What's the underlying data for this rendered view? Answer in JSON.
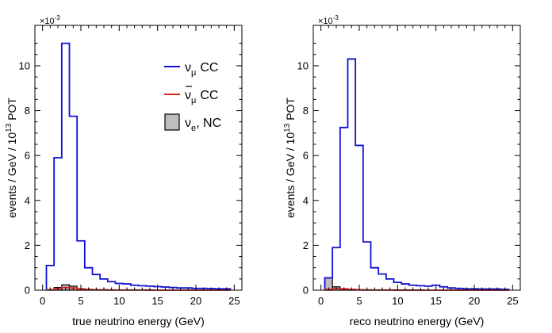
{
  "chart_data": [
    {
      "type": "histogram",
      "xlabel": "true neutrino energy (GeV)",
      "ylabel": "events / GeV / 10",
      "ylabel_exp": "13",
      "ylabel_suffix": " POT",
      "y_multiplier_base": "×10",
      "y_multiplier_exp": "-3",
      "xlim": [
        -1,
        26
      ],
      "ylim": [
        0,
        11.8
      ],
      "xticks": [
        0,
        5,
        10,
        15,
        20,
        25
      ],
      "yticks": [
        0,
        2,
        4,
        6,
        8,
        10
      ],
      "bin_edges": [
        0.5,
        1.5,
        2.5,
        3.5,
        4.5,
        5.5,
        6.5,
        7.5,
        8.5,
        9.5,
        10.5,
        11.5,
        12.5,
        13.5,
        14.5,
        15.5,
        16.5,
        17.5,
        18.5,
        19.5,
        20.5,
        21.5,
        22.5,
        23.5,
        24.5
      ],
      "series": [
        {
          "name": "ν_μ CC",
          "color": "#1010d8",
          "style": "step",
          "values": [
            1.1,
            5.9,
            11.0,
            7.75,
            2.2,
            1.0,
            0.7,
            0.5,
            0.38,
            0.3,
            0.28,
            0.22,
            0.2,
            0.18,
            0.16,
            0.14,
            0.12,
            0.1,
            0.1,
            0.08,
            0.08,
            0.07,
            0.06,
            0.06
          ]
        },
        {
          "name": "ν̄_μ CC",
          "color": "#e02020",
          "style": "step",
          "values": [
            0.02,
            0.08,
            0.12,
            0.1,
            0.05,
            0.03,
            0.02,
            0.02,
            0.01,
            0.01,
            0.01,
            0.01,
            0.01,
            0,
            0,
            0,
            0,
            0,
            0,
            0,
            0,
            0,
            0,
            0
          ]
        },
        {
          "name": "ν_e, NC",
          "color": "#000000",
          "fill": "#bdbdbd",
          "style": "filled",
          "values": [
            0.03,
            0.12,
            0.24,
            0.18,
            0.07,
            0.04,
            0.02,
            0.02,
            0.01,
            0.01,
            0.01,
            0.01,
            0.01,
            0.01,
            0,
            0,
            0,
            0,
            0,
            0,
            0,
            0,
            0,
            0
          ]
        }
      ],
      "legend": {
        "placement": "top-right",
        "entries": [
          {
            "label": "CC",
            "sym_base": "ν",
            "sym_sub": "μ",
            "bar": false,
            "color": "#1010d8",
            "kind": "line"
          },
          {
            "label": "CC",
            "sym_base": "ν",
            "sym_sub": "μ",
            "bar": true,
            "color": "#e02020",
            "kind": "line"
          },
          {
            "label": ", NC",
            "sym_base": "ν",
            "sym_sub": "e",
            "bar": false,
            "color": "#000000",
            "kind": "box"
          }
        ]
      }
    },
    {
      "type": "histogram",
      "xlabel": "reco neutrino energy (GeV)",
      "ylabel": "events / GeV / 10",
      "ylabel_exp": "13",
      "ylabel_suffix": " POT",
      "y_multiplier_base": "×10",
      "y_multiplier_exp": "-3",
      "xlim": [
        -1,
        26
      ],
      "ylim": [
        0,
        11.8
      ],
      "xticks": [
        0,
        5,
        10,
        15,
        20,
        25
      ],
      "yticks": [
        0,
        2,
        4,
        6,
        8,
        10
      ],
      "bin_edges": [
        0.5,
        1.5,
        2.5,
        3.5,
        4.5,
        5.5,
        6.5,
        7.5,
        8.5,
        9.5,
        10.5,
        11.5,
        12.5,
        13.5,
        14.5,
        15.5,
        16.5,
        17.5,
        18.5,
        19.5,
        20.5,
        21.5,
        22.5,
        23.5,
        24.5
      ],
      "series": [
        {
          "name": "ν_μ CC",
          "color": "#1010d8",
          "style": "step",
          "values": [
            0.55,
            1.9,
            7.25,
            10.3,
            6.45,
            2.15,
            1.0,
            0.72,
            0.5,
            0.35,
            0.28,
            0.22,
            0.2,
            0.18,
            0.22,
            0.15,
            0.1,
            0.08,
            0.06,
            0.06,
            0.05,
            0.05,
            0.05,
            0.04
          ]
        },
        {
          "name": "ν̄_μ CC",
          "color": "#e02020",
          "style": "step",
          "values": [
            0.04,
            0.08,
            0.06,
            0.04,
            0.02,
            0.01,
            0.01,
            0.01,
            0.01,
            0,
            0,
            0,
            0,
            0,
            0,
            0,
            0,
            0,
            0,
            0,
            0,
            0,
            0,
            0
          ]
        },
        {
          "name": "ν_e, NC",
          "color": "#000000",
          "fill": "#bdbdbd",
          "style": "filled",
          "values": [
            0.55,
            0.15,
            0.05,
            0.03,
            0.02,
            0.02,
            0.01,
            0.01,
            0.01,
            0.01,
            0.01,
            0.01,
            0.01,
            0,
            0,
            0,
            0,
            0,
            0,
            0,
            0,
            0,
            0,
            0
          ]
        }
      ],
      "legend": null
    }
  ]
}
